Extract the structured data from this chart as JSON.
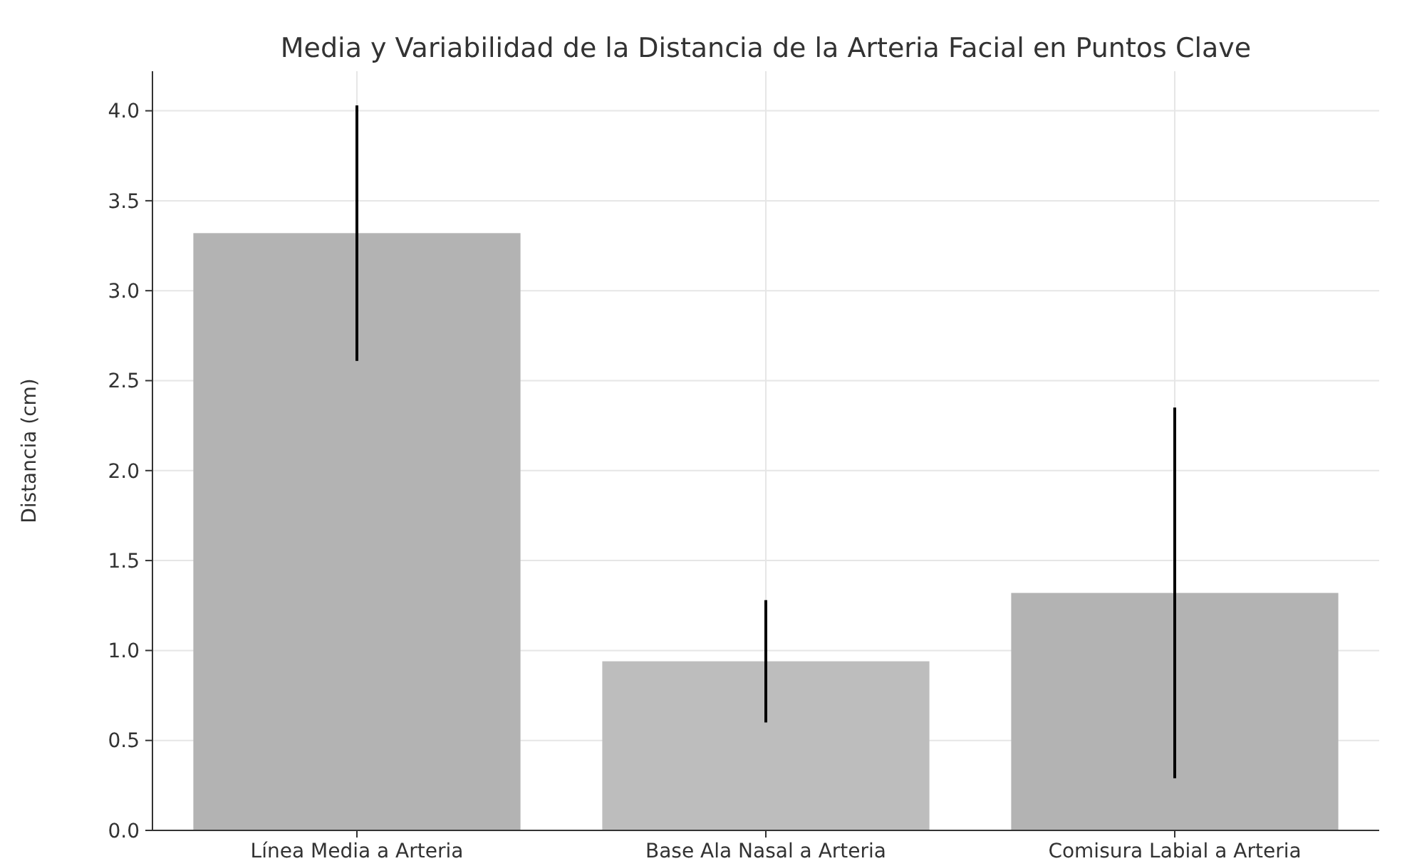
{
  "chart_data": {
    "type": "bar",
    "title": "Media y Variabilidad de la Distancia de la Arteria Facial en Puntos Clave",
    "ylabel": "Distancia (cm)",
    "categories": [
      "Línea Media a Arteria",
      "Base Ala Nasal a Arteria",
      "Comisura Labial a Arteria"
    ],
    "values": [
      3.32,
      0.94,
      1.32
    ],
    "errors": [
      0.71,
      0.34,
      1.03
    ],
    "colors": [
      "#b3b3b3",
      "#bdbdbd",
      "#b3b3b3"
    ],
    "ylim": [
      0,
      4.22
    ],
    "yticks": [
      {
        "value": 0,
        "label": "0.0"
      },
      {
        "value": 0.5,
        "label": "0.5"
      },
      {
        "value": 1,
        "label": "1.0"
      },
      {
        "value": 1.5,
        "label": "1.5"
      },
      {
        "value": 2,
        "label": "2.0"
      },
      {
        "value": 2.5,
        "label": "2.5"
      },
      {
        "value": 3,
        "label": "3.0"
      },
      {
        "value": 3.5,
        "label": "3.5"
      },
      {
        "value": 4,
        "label": "4.0"
      }
    ],
    "grid": true
  }
}
